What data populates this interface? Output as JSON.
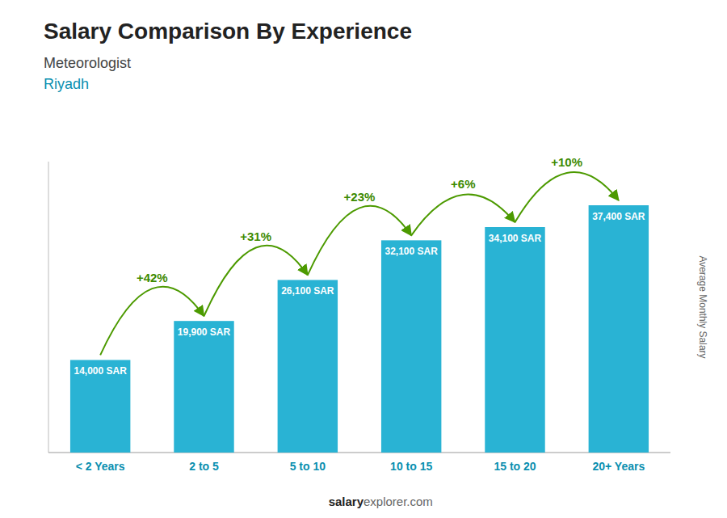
{
  "chart_data": {
    "type": "bar",
    "title": "Salary Comparison By Experience",
    "subtitle": "Meteorologist",
    "city": "Riyadh",
    "ylabel": "Average Monthly Salary",
    "footer": [
      "salary",
      "explorer.com"
    ],
    "categories": [
      "< 2 Years",
      "2 to 5",
      "5 to 10",
      "10 to 15",
      "15 to 20",
      "20+ Years"
    ],
    "values": [
      14000,
      19900,
      26100,
      32100,
      34100,
      37400
    ],
    "value_labels": [
      "14,000 SAR",
      "19,900 SAR",
      "26,100 SAR",
      "32,100 SAR",
      "34,100 SAR",
      "37,400 SAR"
    ],
    "data_labels": true,
    "annotations": [
      "+42%",
      "+31%",
      "+23%",
      "+6%",
      "+10%"
    ],
    "color": "#29b3d4",
    "ylim": [
      0,
      44000
    ],
    "yticks": [],
    "grid": false,
    "tick_labels": "x"
  }
}
